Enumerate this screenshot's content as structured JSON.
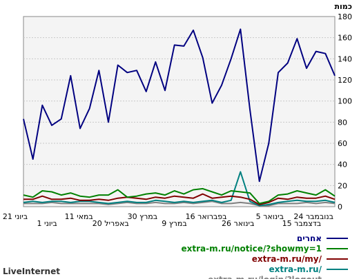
{
  "brand": "LiveInternet",
  "chart_data": {
    "type": "line",
    "ylabel": "כמות",
    "ylim": [
      0,
      180
    ],
    "yticks": [
      0,
      20,
      40,
      60,
      80,
      100,
      120,
      140,
      160,
      180
    ],
    "grid": true,
    "xtick_labels": [
      "24 בנובמבר",
      "15 בדצמבר",
      "5 בינואר",
      "26 בינואר",
      "16 בפברואר",
      "9 במרץ",
      "30 במרץ",
      "20 באפריל",
      "11 במאי",
      "1 ביוני",
      "21 ביוני"
    ],
    "x_direction": "right-to-left",
    "legend_placement": "bottom-right",
    "series": [
      {
        "name": "אחרים",
        "color": "#000080",
        "values": [
          124,
          145,
          147,
          131,
          159,
          136,
          127,
          60,
          24,
          92,
          168,
          140,
          115,
          98,
          141,
          167,
          152,
          153,
          110,
          137,
          109,
          129,
          127,
          134,
          80,
          129,
          93,
          74,
          124,
          83,
          77,
          96,
          45,
          83
        ]
      },
      {
        "name": "extra-m.ru/notice/?showmy=1",
        "color": "#008000",
        "values": [
          10,
          16,
          11,
          13,
          15,
          12,
          11,
          5,
          3,
          13,
          14,
          15,
          11,
          14,
          17,
          16,
          12,
          15,
          11,
          13,
          12,
          10,
          9,
          16,
          11,
          11,
          9,
          10,
          13,
          11,
          14,
          15,
          9,
          11
        ]
      },
      {
        "name": "extra-m.ru/my/",
        "color": "#800000",
        "values": [
          7,
          10,
          8,
          8,
          9,
          7,
          8,
          4,
          2,
          7,
          9,
          10,
          9,
          8,
          12,
          8,
          9,
          10,
          8,
          9,
          7,
          8,
          9,
          8,
          6,
          7,
          6,
          6,
          8,
          7,
          7,
          10,
          7,
          7
        ]
      },
      {
        "name": "extra-m.ru/",
        "color": "#008080",
        "values": [
          4,
          6,
          5,
          5,
          6,
          5,
          4,
          2,
          1,
          5,
          33,
          6,
          4,
          6,
          5,
          4,
          5,
          4,
          5,
          6,
          4,
          4,
          5,
          4,
          3,
          4,
          5,
          5,
          4,
          5,
          5,
          4,
          5,
          4
        ]
      },
      {
        "name": "extra-m.ru/login/?logout",
        "color": "#808080",
        "values": [
          3,
          4,
          3,
          4,
          3,
          3,
          3,
          1,
          1,
          3,
          4,
          3,
          3,
          5,
          4,
          3,
          4,
          3,
          3,
          4,
          3,
          3,
          4,
          3,
          2,
          3,
          3,
          3,
          3,
          3,
          4,
          3,
          3,
          3
        ]
      }
    ]
  }
}
